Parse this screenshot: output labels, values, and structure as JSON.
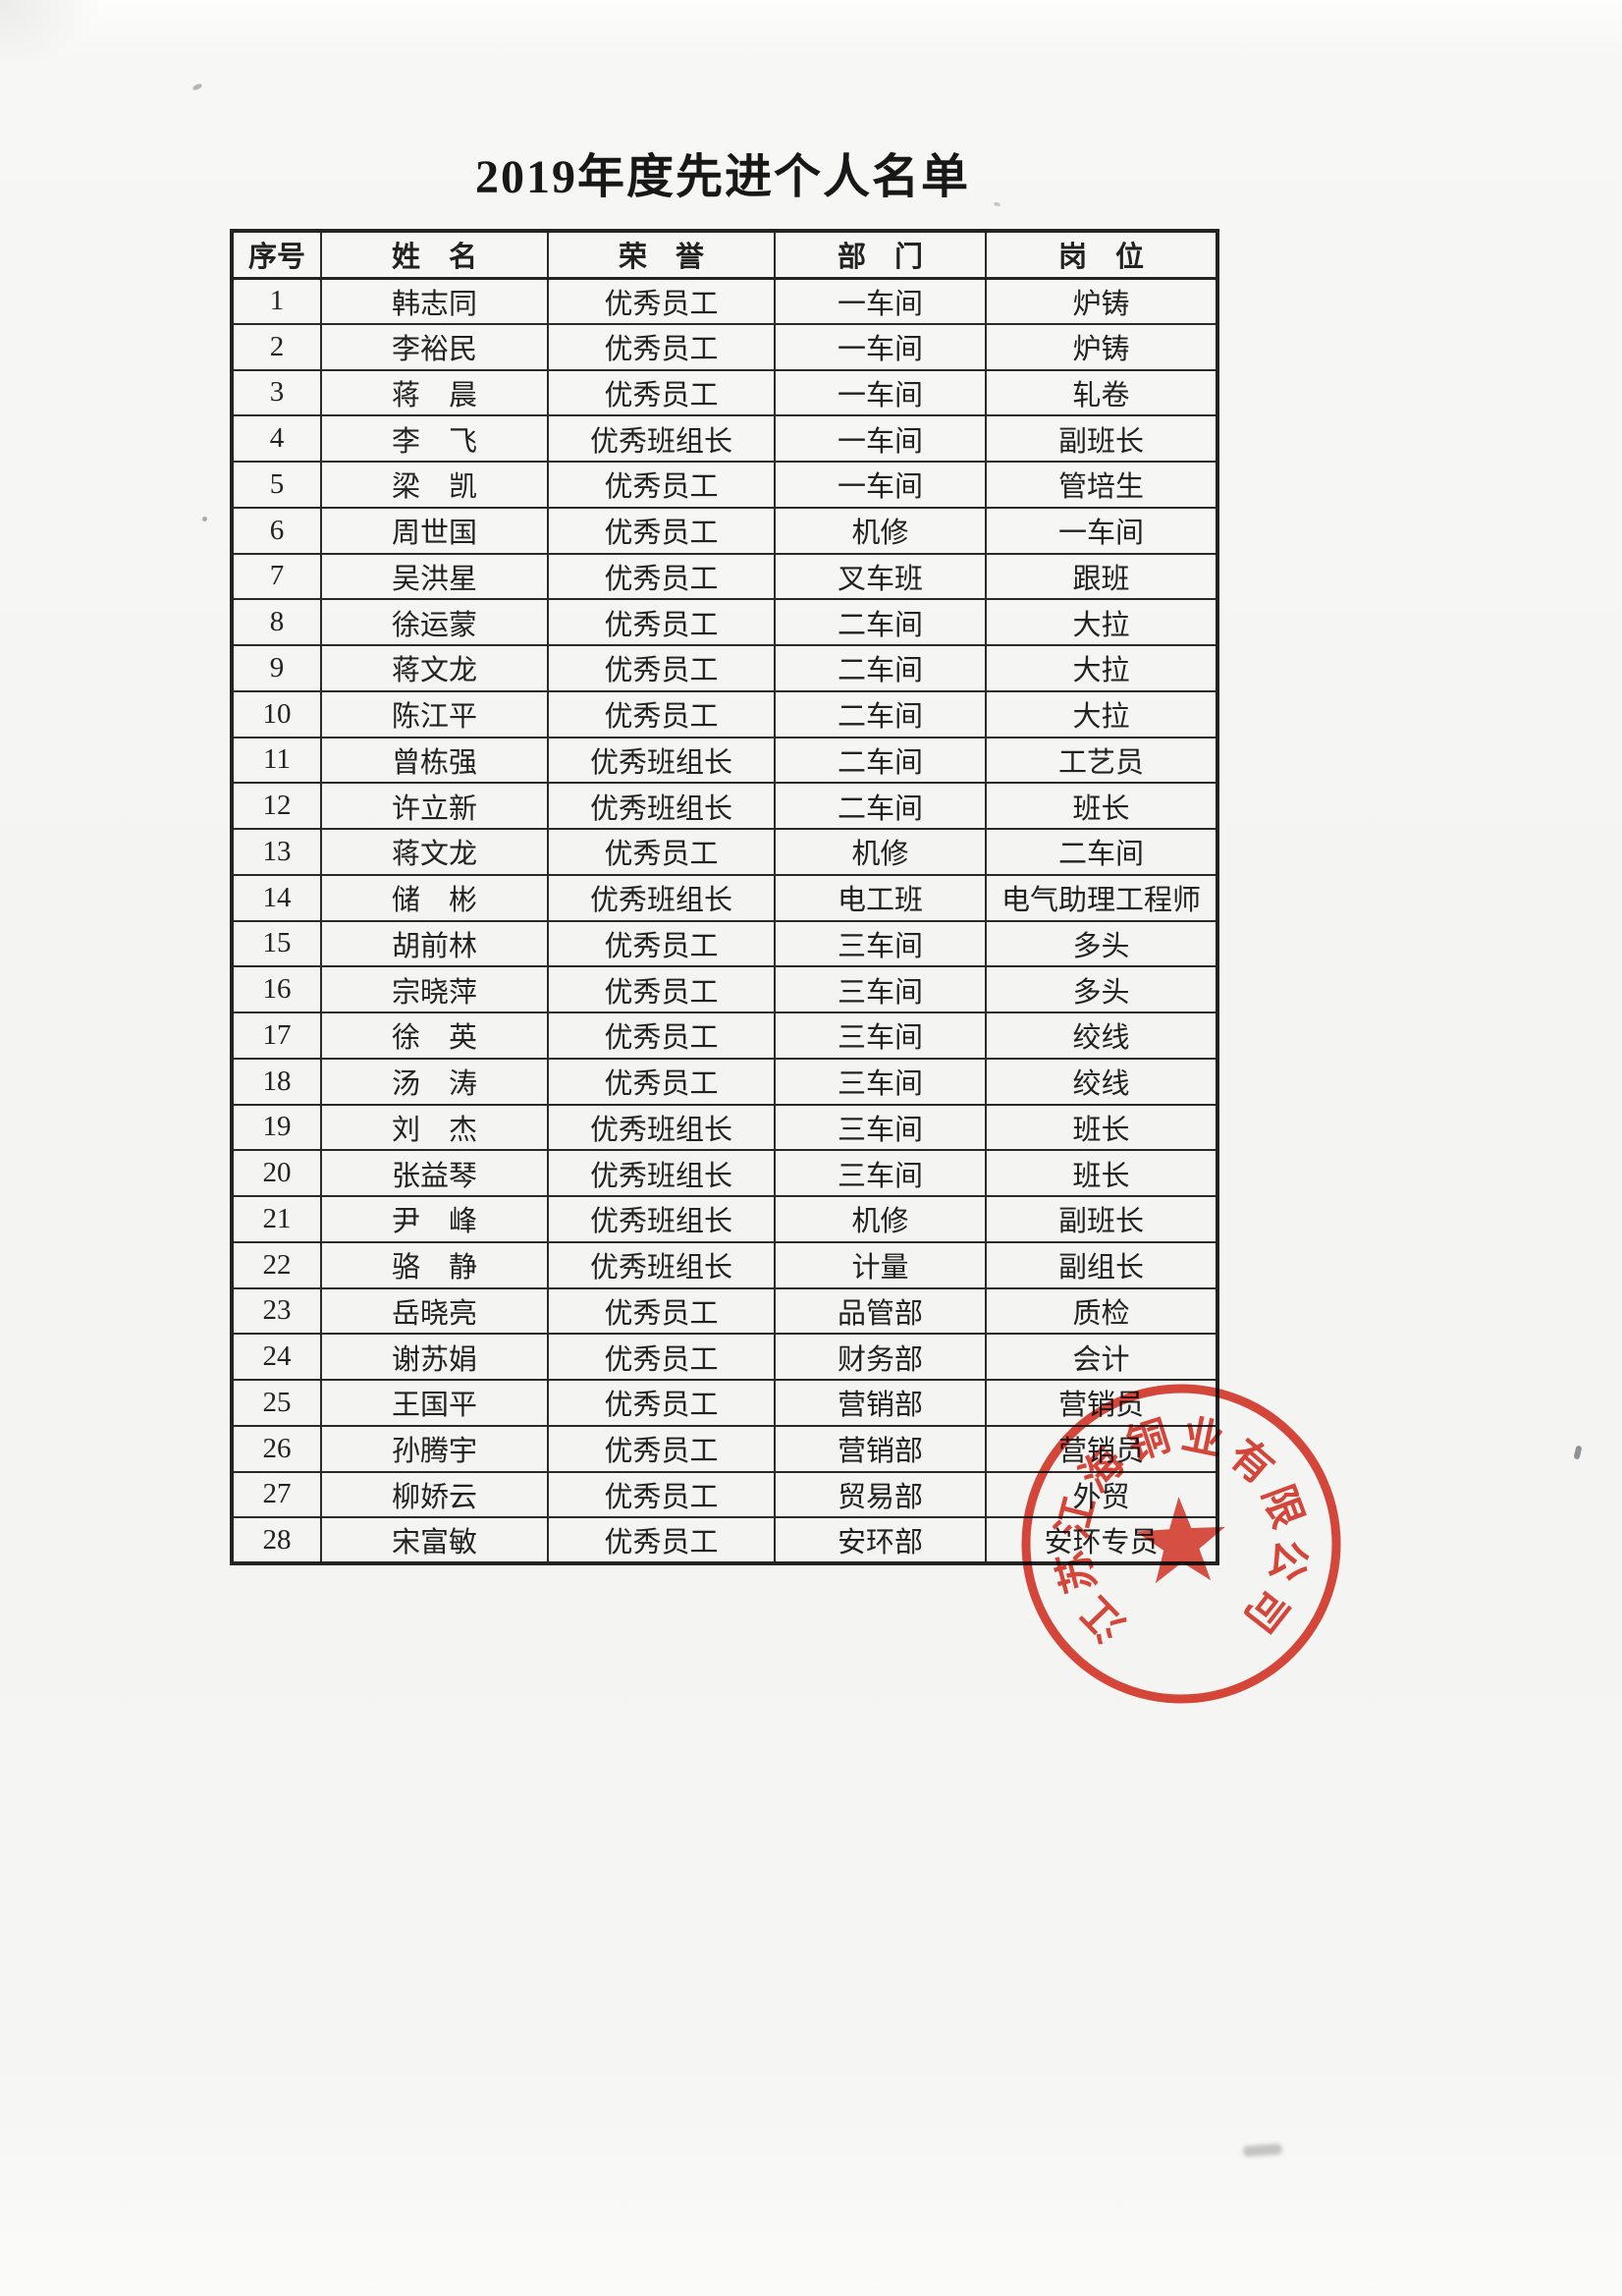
{
  "page": {
    "title": "2019年度先进个人名单"
  },
  "table": {
    "headers": [
      "序号",
      "姓　名",
      "荣　誉",
      "部　门",
      "岗　位"
    ],
    "column_keys": [
      "no",
      "name",
      "honor",
      "dept",
      "position"
    ],
    "rows": [
      [
        "1",
        "韩志同",
        "优秀员工",
        "一车间",
        "炉铸"
      ],
      [
        "2",
        "李裕民",
        "优秀员工",
        "一车间",
        "炉铸"
      ],
      [
        "3",
        "蒋　晨",
        "优秀员工",
        "一车间",
        "轧卷"
      ],
      [
        "4",
        "李　飞",
        "优秀班组长",
        "一车间",
        "副班长"
      ],
      [
        "5",
        "梁　凯",
        "优秀员工",
        "一车间",
        "管培生"
      ],
      [
        "6",
        "周世国",
        "优秀员工",
        "机修",
        "一车间"
      ],
      [
        "7",
        "吴洪星",
        "优秀员工",
        "叉车班",
        "跟班"
      ],
      [
        "8",
        "徐运蒙",
        "优秀员工",
        "二车间",
        "大拉"
      ],
      [
        "9",
        "蒋文龙",
        "优秀员工",
        "二车间",
        "大拉"
      ],
      [
        "10",
        "陈江平",
        "优秀员工",
        "二车间",
        "大拉"
      ],
      [
        "11",
        "曾栋强",
        "优秀班组长",
        "二车间",
        "工艺员"
      ],
      [
        "12",
        "许立新",
        "优秀班组长",
        "二车间",
        "班长"
      ],
      [
        "13",
        "蒋文龙",
        "优秀员工",
        "机修",
        "二车间"
      ],
      [
        "14",
        "储　彬",
        "优秀班组长",
        "电工班",
        "电气助理工程师"
      ],
      [
        "15",
        "胡前林",
        "优秀员工",
        "三车间",
        "多头"
      ],
      [
        "16",
        "宗晓萍",
        "优秀员工",
        "三车间",
        "多头"
      ],
      [
        "17",
        "徐　英",
        "优秀员工",
        "三车间",
        "绞线"
      ],
      [
        "18",
        "汤　涛",
        "优秀员工",
        "三车间",
        "绞线"
      ],
      [
        "19",
        "刘　杰",
        "优秀班组长",
        "三车间",
        "班长"
      ],
      [
        "20",
        "张益琴",
        "优秀班组长",
        "三车间",
        "班长"
      ],
      [
        "21",
        "尹　峰",
        "优秀班组长",
        "机修",
        "副班长"
      ],
      [
        "22",
        "骆　静",
        "优秀班组长",
        "计量",
        "副组长"
      ],
      [
        "23",
        "岳晓亮",
        "优秀员工",
        "品管部",
        "质检"
      ],
      [
        "24",
        "谢苏娟",
        "优秀员工",
        "财务部",
        "会计"
      ],
      [
        "25",
        "王国平",
        "优秀员工",
        "营销部",
        "营销员"
      ],
      [
        "26",
        "孙腾宇",
        "优秀员工",
        "营销部",
        "营销员"
      ],
      [
        "27",
        "柳娇云",
        "优秀员工",
        "贸易部",
        "外贸"
      ],
      [
        "28",
        "宋富敏",
        "优秀员工",
        "安环部",
        "安环专员"
      ]
    ]
  },
  "seal": {
    "company": "江苏江海铜业有限公司",
    "color": "#dc392b",
    "symbol": "five-pointed-star"
  }
}
